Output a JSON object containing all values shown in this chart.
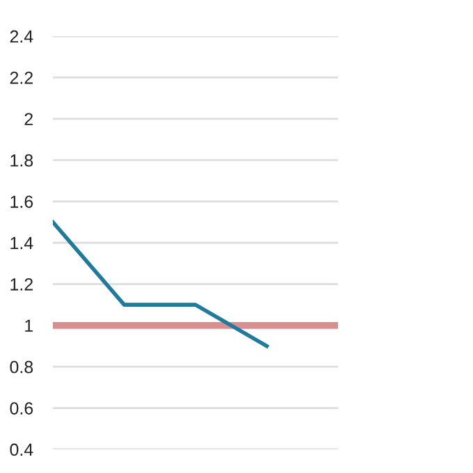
{
  "chart_data": {
    "type": "line",
    "categories": [
      null,
      null,
      null,
      null,
      null
    ],
    "series": [
      {
        "color": "#1f7a9c",
        "values": [
          1.5,
          1.1,
          1.1,
          0.9,
          null
        ]
      }
    ],
    "ylim": [
      0.4,
      2.4
    ],
    "yticks": [
      0.4,
      0.6,
      0.8,
      1,
      1.2,
      1.4,
      1.6,
      1.8,
      2,
      2.2,
      2.4
    ],
    "grid": "y",
    "tick_labels": "y",
    "ref_lines": [
      {
        "axis": "y",
        "value": 1,
        "color": "#d98f8f"
      }
    ]
  }
}
